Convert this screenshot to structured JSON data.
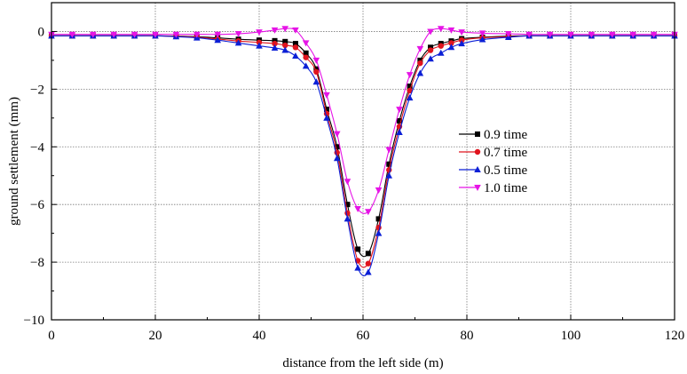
{
  "chart_data": {
    "type": "line",
    "title": "",
    "xlabel": "distance from the left side (m)",
    "ylabel": "ground settlement (mm)",
    "xlim": [
      0,
      120
    ],
    "ylim": [
      -10,
      1
    ],
    "xticks": [
      0,
      20,
      40,
      60,
      80,
      100,
      120
    ],
    "yticks": [
      0,
      -2,
      -4,
      -6,
      -8,
      -10
    ],
    "xtick_labels": [
      "0",
      "20",
      "40",
      "60",
      "80",
      "100",
      "120"
    ],
    "ytick_labels": [
      "0",
      "−2",
      "−4",
      "−6",
      "−8",
      "−10"
    ],
    "grid": true,
    "legend_position": "center-right",
    "x": [
      0,
      4,
      8,
      12,
      16,
      20,
      24,
      28,
      32,
      36,
      40,
      43,
      45,
      47,
      49,
      51,
      53,
      55,
      57,
      59,
      61,
      63,
      65,
      67,
      69,
      71,
      73,
      75,
      77,
      79,
      83,
      88,
      92,
      96,
      100,
      104,
      108,
      112,
      116,
      120
    ],
    "series": [
      {
        "name": "0.9 time",
        "color": "#000000",
        "marker": "square",
        "values": [
          -0.15,
          -0.15,
          -0.15,
          -0.15,
          -0.15,
          -0.15,
          -0.16,
          -0.18,
          -0.22,
          -0.27,
          -0.3,
          -0.32,
          -0.35,
          -0.42,
          -0.75,
          -1.3,
          -2.7,
          -4.0,
          -6.0,
          -7.55,
          -7.7,
          -6.5,
          -4.6,
          -3.1,
          -1.9,
          -1.0,
          -0.55,
          -0.42,
          -0.33,
          -0.25,
          -0.2,
          -0.16,
          -0.15,
          -0.15,
          -0.15,
          -0.15,
          -0.15,
          -0.15,
          -0.15,
          -0.15
        ]
      },
      {
        "name": "0.7 time",
        "color": "#e0141e",
        "marker": "circle",
        "values": [
          -0.15,
          -0.15,
          -0.15,
          -0.15,
          -0.15,
          -0.15,
          -0.17,
          -0.2,
          -0.26,
          -0.33,
          -0.38,
          -0.42,
          -0.48,
          -0.55,
          -0.9,
          -1.4,
          -2.85,
          -4.2,
          -6.3,
          -7.95,
          -8.05,
          -6.8,
          -4.8,
          -3.3,
          -2.05,
          -1.1,
          -0.65,
          -0.5,
          -0.4,
          -0.3,
          -0.22,
          -0.18,
          -0.15,
          -0.15,
          -0.15,
          -0.15,
          -0.15,
          -0.15,
          -0.15,
          -0.15
        ]
      },
      {
        "name": "0.5 time",
        "color": "#0b1fd6",
        "marker": "triangle-up",
        "values": [
          -0.15,
          -0.15,
          -0.15,
          -0.15,
          -0.15,
          -0.15,
          -0.18,
          -0.22,
          -0.3,
          -0.4,
          -0.5,
          -0.57,
          -0.65,
          -0.85,
          -1.2,
          -1.75,
          -3.0,
          -4.4,
          -6.5,
          -8.2,
          -8.35,
          -7.0,
          -5.0,
          -3.5,
          -2.3,
          -1.45,
          -0.95,
          -0.75,
          -0.55,
          -0.42,
          -0.28,
          -0.2,
          -0.15,
          -0.15,
          -0.15,
          -0.15,
          -0.15,
          -0.15,
          -0.15,
          -0.15
        ]
      },
      {
        "name": "1.0 time",
        "color": "#e614e6",
        "marker": "triangle-down",
        "values": [
          -0.1,
          -0.1,
          -0.1,
          -0.1,
          -0.1,
          -0.1,
          -0.1,
          -0.1,
          -0.1,
          -0.08,
          -0.02,
          0.05,
          0.1,
          0.05,
          -0.4,
          -1.0,
          -2.2,
          -3.55,
          -5.2,
          -6.15,
          -6.25,
          -5.5,
          -4.1,
          -2.7,
          -1.5,
          -0.6,
          0.0,
          0.1,
          0.05,
          -0.02,
          -0.06,
          -0.08,
          -0.1,
          -0.1,
          -0.1,
          -0.1,
          -0.1,
          -0.1,
          -0.1,
          -0.1
        ]
      }
    ]
  }
}
